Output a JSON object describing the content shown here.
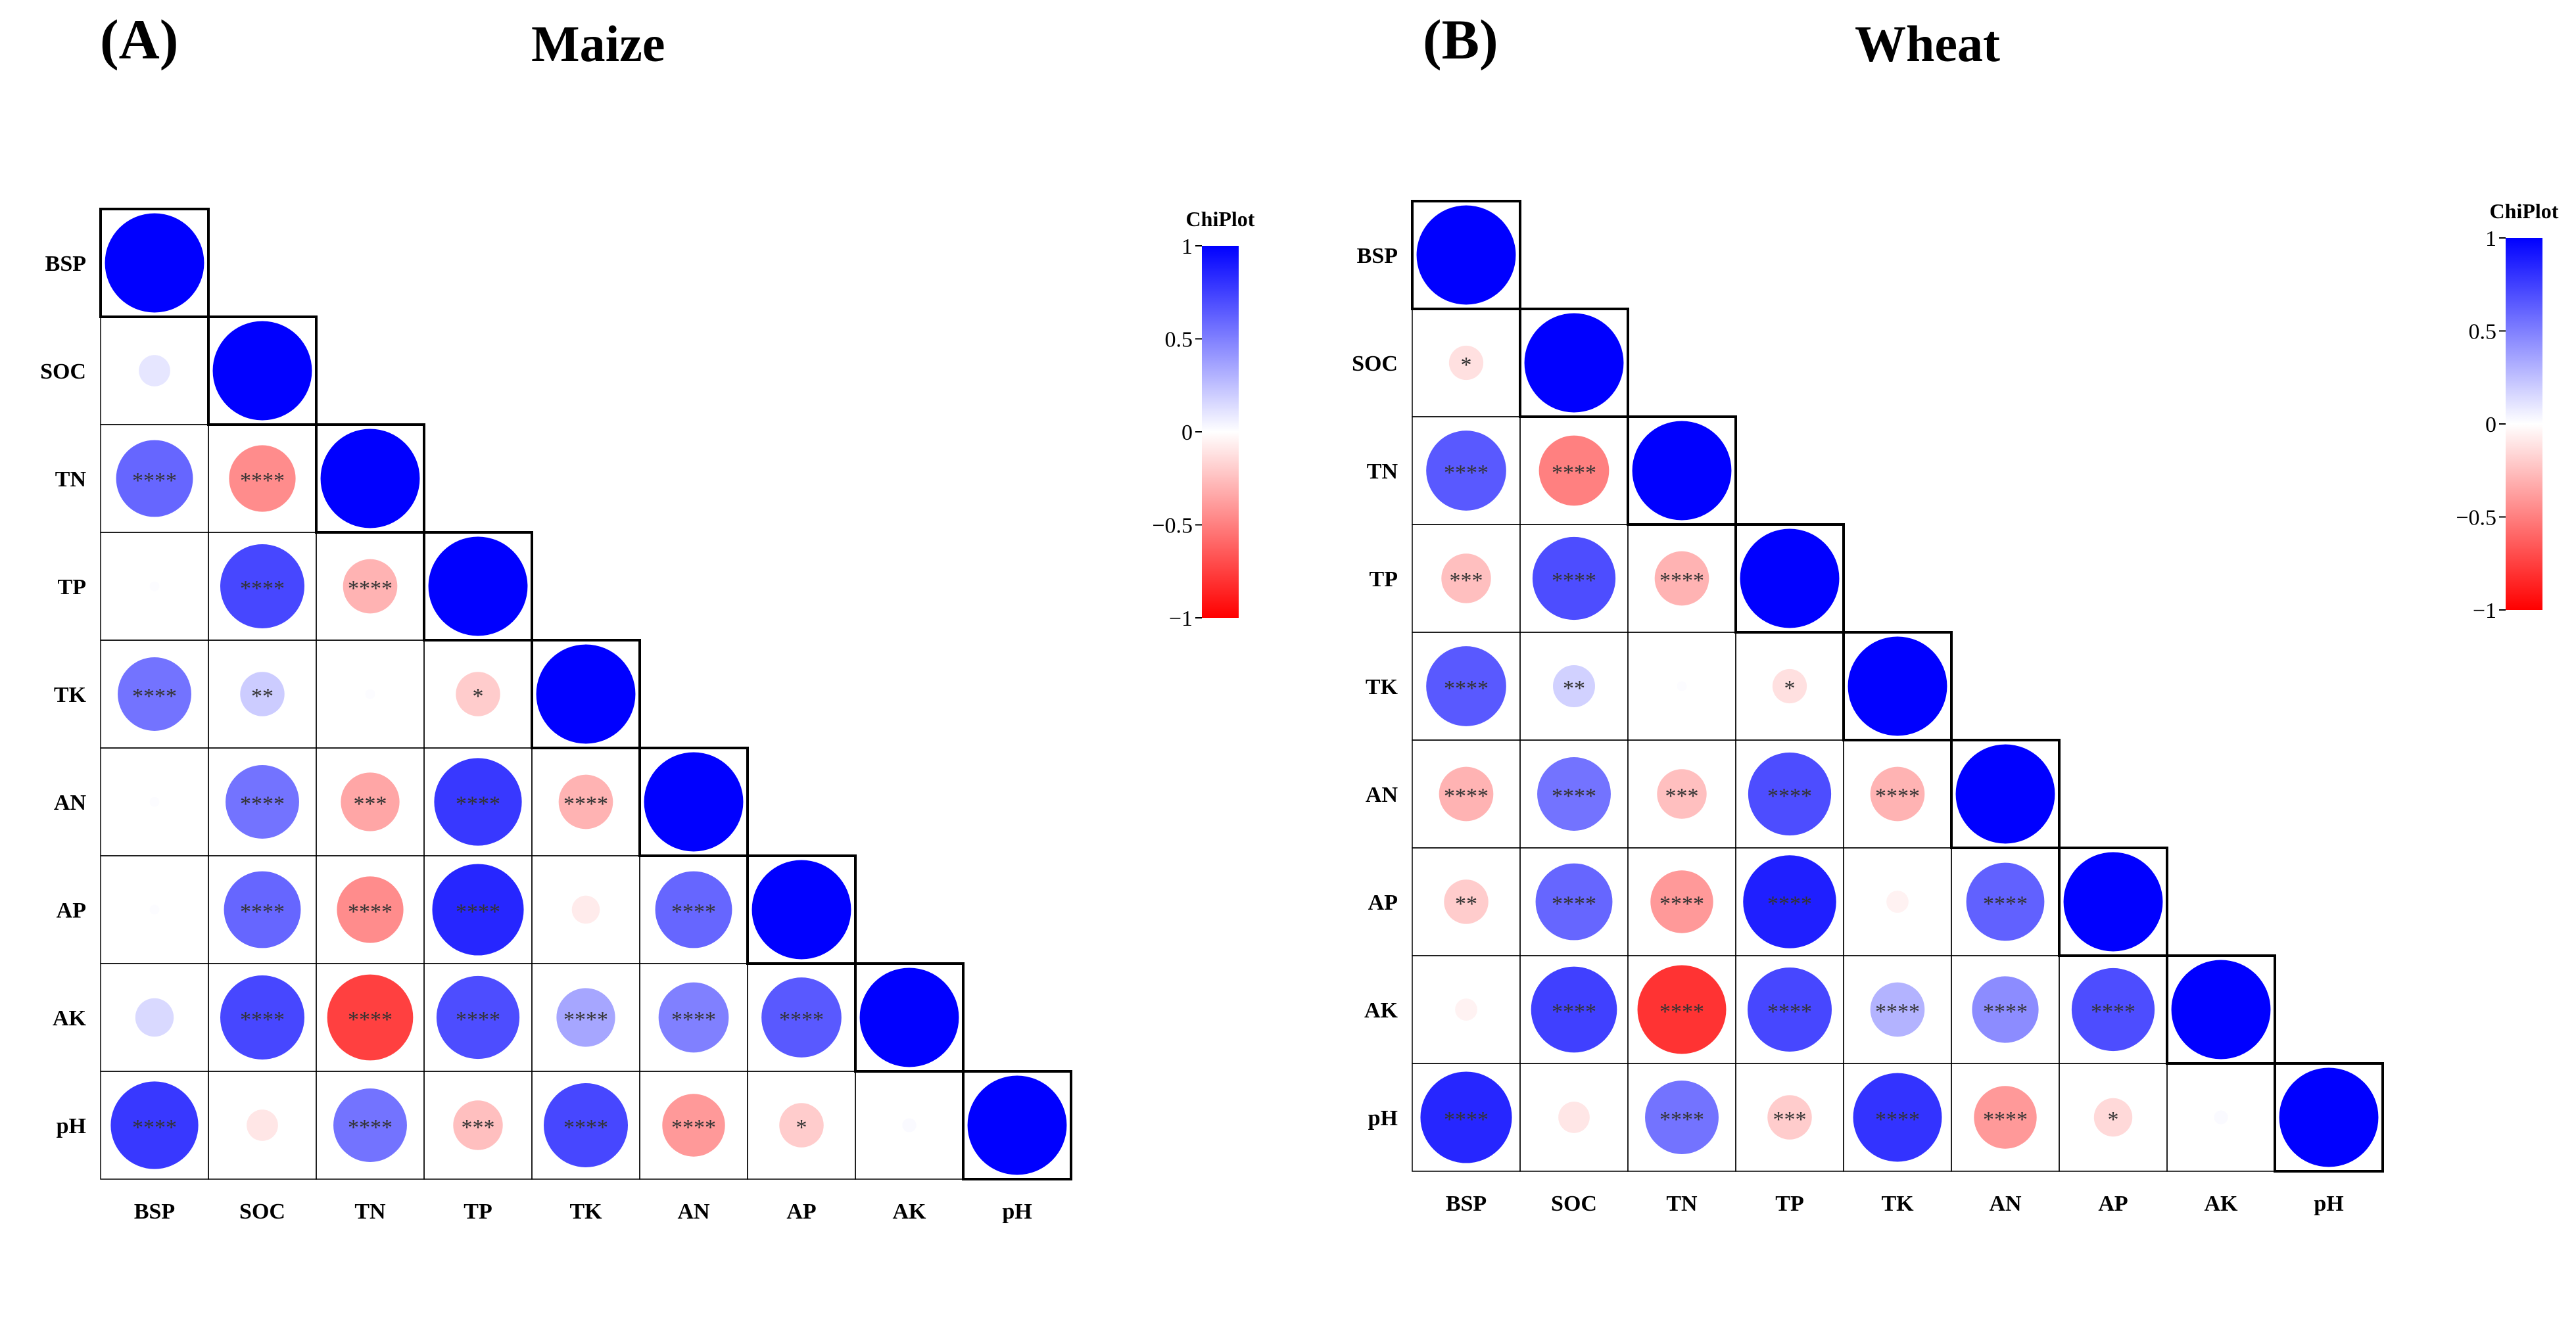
{
  "chart_data": [
    {
      "type": "heatmap",
      "panel_label": "(A)",
      "title": "Maize",
      "variables": [
        "BSP",
        "SOC",
        "TN",
        "TP",
        "TK",
        "AN",
        "AP",
        "AK",
        "pH"
      ],
      "legend": {
        "title": "ChiPlot",
        "ticks": [
          "1",
          "0.5",
          "0",
          "−0.5",
          "−1"
        ],
        "range": [
          -1,
          1
        ],
        "placement": "right"
      },
      "colors": {
        "positive": "#0000ff",
        "neutral": "#ffffff",
        "negative": "#ff0000"
      },
      "matrix": [
        [
          1.0
        ],
        [
          0.1,
          1.0
        ],
        [
          0.6,
          -0.45,
          1.0
        ],
        [
          0.01,
          0.72,
          -0.3,
          1.0
        ],
        [
          0.55,
          0.2,
          0.01,
          -0.2,
          1.0
        ],
        [
          0.01,
          0.55,
          -0.35,
          0.78,
          -0.3,
          1.0
        ],
        [
          0.01,
          0.6,
          -0.45,
          0.85,
          -0.08,
          0.6,
          1.0
        ],
        [
          0.15,
          0.72,
          -0.75,
          0.7,
          0.35,
          0.5,
          0.65,
          1.0
        ],
        [
          0.78,
          -0.1,
          0.55,
          -0.25,
          0.72,
          -0.4,
          -0.2,
          0.02,
          1.0
        ]
      ],
      "significance": [
        [
          ""
        ],
        [
          "",
          ""
        ],
        [
          "****",
          "****",
          ""
        ],
        [
          "",
          "****",
          "****",
          ""
        ],
        [
          "****",
          "**",
          "",
          "*",
          ""
        ],
        [
          "",
          "****",
          "***",
          "****",
          "****",
          ""
        ],
        [
          "",
          "****",
          "****",
          "****",
          "",
          "****",
          ""
        ],
        [
          "",
          "****",
          "****",
          "****",
          "****",
          "****",
          "****",
          ""
        ],
        [
          "****",
          "",
          "****",
          "***",
          "****",
          "****",
          "*",
          "",
          ""
        ]
      ]
    },
    {
      "type": "heatmap",
      "panel_label": "(B)",
      "title": "Wheat",
      "variables": [
        "BSP",
        "SOC",
        "TN",
        "TP",
        "TK",
        "AN",
        "AP",
        "AK",
        "pH"
      ],
      "legend": {
        "title": "ChiPlot",
        "ticks": [
          "1",
          "0.5",
          "0",
          "−0.5",
          "−1"
        ],
        "range": [
          -1,
          1
        ],
        "placement": "right"
      },
      "colors": {
        "positive": "#0000ff",
        "neutral": "#ffffff",
        "negative": "#ff0000"
      },
      "matrix": [
        [
          1.0
        ],
        [
          -0.12,
          1.0
        ],
        [
          0.65,
          -0.5,
          1.0
        ],
        [
          -0.25,
          0.7,
          -0.3,
          1.0
        ],
        [
          0.65,
          0.18,
          0.01,
          -0.12,
          1.0
        ],
        [
          -0.3,
          0.55,
          -0.25,
          0.7,
          -0.3,
          1.0
        ],
        [
          -0.2,
          0.6,
          -0.4,
          0.88,
          -0.05,
          0.62,
          1.0
        ],
        [
          -0.05,
          0.75,
          -0.8,
          0.72,
          0.3,
          0.45,
          0.7,
          1.0
        ],
        [
          0.85,
          -0.1,
          0.55,
          -0.2,
          0.8,
          -0.4,
          -0.15,
          0.02,
          1.0
        ]
      ],
      "significance": [
        [
          ""
        ],
        [
          "*",
          ""
        ],
        [
          "****",
          "****",
          ""
        ],
        [
          "***",
          "****",
          "****",
          ""
        ],
        [
          "****",
          "**",
          "",
          "*",
          ""
        ],
        [
          "****",
          "****",
          "***",
          "****",
          "****",
          ""
        ],
        [
          "**",
          "****",
          "****",
          "****",
          "",
          "****",
          ""
        ],
        [
          "",
          "****",
          "****",
          "****",
          "****",
          "****",
          "****",
          ""
        ],
        [
          "****",
          "",
          "****",
          "***",
          "****",
          "****",
          "*",
          "",
          ""
        ]
      ]
    }
  ]
}
